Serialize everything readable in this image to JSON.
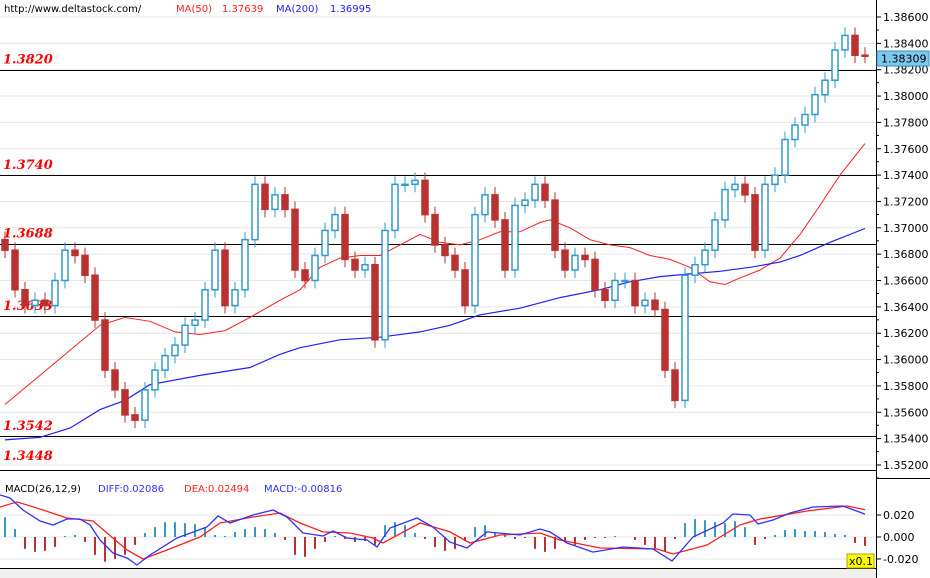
{
  "header": {
    "url": "http://www.deltastock.com/",
    "ma50_label": "MA(50)",
    "ma50_value": "1.37639",
    "ma200_label": "MA(200)",
    "ma200_value": "1.36995"
  },
  "macd_header": {
    "label": "MACD(26,12,9)",
    "diff": "DIFF:0.02086",
    "dea": "DEA:0.02494",
    "macd": "MACD:-0.00816"
  },
  "current_price": "1.38309",
  "macd_scale_badge": "x0.1",
  "colors": {
    "up": "#3399cc",
    "down": "#b83232",
    "ma50": "#ff2020",
    "ma200": "#2020ff",
    "diff": "#3030ff",
    "dea": "#ff2020",
    "level": "#ff0000",
    "price_box": "#7ec8f0"
  },
  "chart_data": [
    {
      "type": "candlestick",
      "ylim": [
        1.3516,
        1.3869
      ],
      "y_ticks": [
        "1.38600",
        "1.38400",
        "1.38200",
        "1.38000",
        "1.37800",
        "1.37600",
        "1.37400",
        "1.37200",
        "1.37000",
        "1.36800",
        "1.36600",
        "1.36400",
        "1.36200",
        "1.36000",
        "1.35800",
        "1.35600",
        "1.35400",
        "1.35200"
      ],
      "levels": [
        "1.3820",
        "1.3740",
        "1.3688",
        "1.3633",
        "1.3542",
        "1.3448"
      ],
      "close": [
        1.3683,
        1.3653,
        1.3641,
        1.3645,
        1.3641,
        1.366,
        1.3683,
        1.3679,
        1.3664,
        1.363,
        1.3592,
        1.3577,
        1.3558,
        1.3554,
        1.3577,
        1.3592,
        1.3603,
        1.3611,
        1.3626,
        1.363,
        1.3653,
        1.3683,
        1.3641,
        1.3653,
        1.3691,
        1.3733,
        1.3714,
        1.3725,
        1.3714,
        1.3668,
        1.366,
        1.3679,
        1.3698,
        1.371,
        1.3676,
        1.3668,
        1.3672,
        1.3615,
        1.3698,
        1.3733,
        1.3733,
        1.3736,
        1.371,
        1.3687,
        1.3679,
        1.3668,
        1.3641,
        1.371,
        1.3725,
        1.3706,
        1.3668,
        1.3717,
        1.3721,
        1.3733,
        1.3721,
        1.3683,
        1.3668,
        1.3679,
        1.3676,
        1.3653,
        1.3645,
        1.366,
        1.366,
        1.3641,
        1.3645,
        1.3638,
        1.3592,
        1.3569,
        1.3664,
        1.3672,
        1.3683,
        1.3706,
        1.3729,
        1.3733,
        1.3725,
        1.3683,
        1.3733,
        1.374,
        1.3767,
        1.3778,
        1.3786,
        1.3801,
        1.3812,
        1.3835,
        1.3846,
        1.3831,
        1.38309
      ],
      "ma50": [
        [
          0,
          1.3566
        ],
        [
          3.5,
          1.3588
        ],
        [
          6.5,
          1.3607
        ],
        [
          9.5,
          1.3626
        ],
        [
          12,
          1.3632
        ],
        [
          14.5,
          1.3629
        ],
        [
          17,
          1.3621
        ],
        [
          19.5,
          1.3619
        ],
        [
          22,
          1.3622
        ],
        [
          24.5,
          1.3632
        ],
        [
          27.5,
          1.3645
        ],
        [
          29.5,
          1.3653
        ],
        [
          31.5,
          1.367
        ],
        [
          33.5,
          1.3677
        ],
        [
          35.5,
          1.3679
        ],
        [
          37.5,
          1.3679
        ],
        [
          39.5,
          1.3687
        ],
        [
          41.5,
          1.3695
        ],
        [
          43.5,
          1.3689
        ],
        [
          45.5,
          1.3687
        ],
        [
          47.5,
          1.3691
        ],
        [
          49.5,
          1.3697
        ],
        [
          51.5,
          1.3697
        ],
        [
          53.5,
          1.3704
        ],
        [
          54.5,
          1.3706
        ],
        [
          56.5,
          1.37
        ],
        [
          58.5,
          1.3691
        ],
        [
          60.5,
          1.3687
        ],
        [
          62.5,
          1.3685
        ],
        [
          64.5,
          1.3679
        ],
        [
          66.5,
          1.3676
        ],
        [
          68.5,
          1.367
        ],
        [
          70.5,
          1.3659
        ],
        [
          72,
          1.3657
        ],
        [
          73.5,
          1.3662
        ],
        [
          75.5,
          1.3668
        ],
        [
          77.5,
          1.3677
        ],
        [
          79.5,
          1.3695
        ],
        [
          81.5,
          1.3717
        ],
        [
          83.5,
          1.374
        ],
        [
          86,
          1.37639
        ]
      ],
      "ma200": [
        [
          0,
          1.3539
        ],
        [
          3.5,
          1.3541
        ],
        [
          6.5,
          1.3548
        ],
        [
          9.5,
          1.3562
        ],
        [
          12,
          1.3569
        ],
        [
          14.5,
          1.3581
        ],
        [
          19.5,
          1.3588
        ],
        [
          24.5,
          1.3594
        ],
        [
          27.5,
          1.3604
        ],
        [
          29.5,
          1.3609
        ],
        [
          33.5,
          1.3615
        ],
        [
          37.5,
          1.3617
        ],
        [
          41.5,
          1.3621
        ],
        [
          44.5,
          1.3626
        ],
        [
          47.5,
          1.3634
        ],
        [
          51.5,
          1.3639
        ],
        [
          55.5,
          1.3647
        ],
        [
          59.5,
          1.3653
        ],
        [
          62.5,
          1.3659
        ],
        [
          65.5,
          1.3663
        ],
        [
          68.5,
          1.3665
        ],
        [
          71.5,
          1.3667
        ],
        [
          74.5,
          1.367
        ],
        [
          77.5,
          1.3674
        ],
        [
          79.5,
          1.3679
        ],
        [
          82.5,
          1.3689
        ],
        [
          86,
          1.36995
        ]
      ]
    },
    {
      "type": "macd",
      "ylim": [
        -0.028,
        0.05
      ],
      "y_ticks": [
        "0.020",
        "0.000",
        "-0.020"
      ],
      "histogram": [
        0.018,
        0.0072,
        -0.0108,
        -0.0135,
        -0.0126,
        -0.009,
        0.0009,
        0.0018,
        -0.0045,
        -0.0162,
        -0.0225,
        -0.0198,
        -0.0162,
        -0.0072,
        0.0036,
        0.009,
        0.0135,
        0.0135,
        0.0126,
        0.0117,
        0.009,
        0.0018,
        0.0009,
        0.0045,
        0.0072,
        0.009,
        0.0072,
        0.0036,
        -0.0027,
        -0.0162,
        -0.018,
        -0.0108,
        -0.0045,
        0.0009,
        -0.0018,
        -0.0045,
        -0.0036,
        -0.0072,
        0.0108,
        0.0135,
        0.0108,
        0.0036,
        -0.0018,
        -0.009,
        -0.0126,
        -0.0108,
        -0.0036,
        0.009,
        0.0108,
        0.0045,
        0.0018,
        -0.0018,
        -0.0009,
        -0.0108,
        -0.0135,
        -0.0108,
        -0.0045,
        -0.0072,
        -0.0027,
        -0.0009,
        -0.0009,
        0.0009,
        0,
        -0.0027,
        -0.0072,
        -0.0108,
        -0.0135,
        -0.0018,
        0.0126,
        0.0162,
        0.0153,
        0.0135,
        0.0126,
        0.0144,
        0.009,
        -0.0072,
        -0.0018,
        0.0018,
        0.0063,
        0.0072,
        0.0054,
        0.0054,
        0.0045,
        0.0027,
        0.0018,
        -0.0054,
        -0.0081
      ],
      "diff": [
        [
          -0.5,
          0.0382
        ],
        [
          0.5,
          0.0355
        ],
        [
          1.8,
          0.0246
        ],
        [
          3.5,
          0.0146
        ],
        [
          4.8,
          0.0109
        ],
        [
          6.2,
          0.0164
        ],
        [
          7.5,
          0.0164
        ],
        [
          8.5,
          0.0109
        ],
        [
          9.5,
          -0.0027
        ],
        [
          10.8,
          -0.0146
        ],
        [
          12.2,
          -0.0191
        ],
        [
          13.2,
          -0.0255
        ],
        [
          14.5,
          -0.0164
        ],
        [
          17.2,
          -0.0009
        ],
        [
          20.2,
          0.0091
        ],
        [
          21.3,
          0.0191
        ],
        [
          22.5,
          0.0127
        ],
        [
          24.8,
          0.02
        ],
        [
          26.8,
          0.0246
        ],
        [
          28.2,
          0.0182
        ],
        [
          29.8,
          0.0036
        ],
        [
          31.8,
          0.0009
        ],
        [
          32.8,
          0.0055
        ],
        [
          34.2,
          -0.0009
        ],
        [
          36.2,
          -0.0027
        ],
        [
          37.2,
          -0.0091
        ],
        [
          38.5,
          0.0082
        ],
        [
          41.2,
          0.0173
        ],
        [
          42.8,
          0.0091
        ],
        [
          44.5,
          -0.0046
        ],
        [
          46.2,
          -0.01
        ],
        [
          48.2,
          0.0046
        ],
        [
          51.5,
          0.0018
        ],
        [
          53.5,
          0.0073
        ],
        [
          54.5,
          0.0046
        ],
        [
          56.2,
          -0.0055
        ],
        [
          58.8,
          -0.0137
        ],
        [
          61.8,
          -0.0091
        ],
        [
          64.8,
          -0.0109
        ],
        [
          66.7,
          -0.0218
        ],
        [
          68.8,
          0
        ],
        [
          71.8,
          0.0127
        ],
        [
          72.8,
          0.0209
        ],
        [
          74.5,
          0.02
        ],
        [
          75.3,
          0.0118
        ],
        [
          76.8,
          0.0155
        ],
        [
          78.5,
          0.0218
        ],
        [
          80.8,
          0.0273
        ],
        [
          83.8,
          0.0282
        ],
        [
          86,
          0.02086
        ]
      ],
      "dea": [
        [
          -0.5,
          0.0273
        ],
        [
          1.2,
          0.0319
        ],
        [
          3.8,
          0.0246
        ],
        [
          6.2,
          0.0173
        ],
        [
          8.8,
          0.0146
        ],
        [
          10.2,
          0.0036
        ],
        [
          12.2,
          -0.0118
        ],
        [
          13.8,
          -0.02
        ],
        [
          16.2,
          -0.0118
        ],
        [
          19.5,
          0
        ],
        [
          21.5,
          0.0127
        ],
        [
          24.8,
          0.0182
        ],
        [
          27.5,
          0.0218
        ],
        [
          29.5,
          0.0127
        ],
        [
          31.8,
          0.0046
        ],
        [
          34.5,
          0.0036
        ],
        [
          36.8,
          -0.0009
        ],
        [
          37.8,
          -0.0055
        ],
        [
          41.5,
          0.0127
        ],
        [
          44.5,
          0.0046
        ],
        [
          46.5,
          -0.0055
        ],
        [
          49.5,
          0.0018
        ],
        [
          53.5,
          0.0036
        ],
        [
          55.5,
          -0.0027
        ],
        [
          59.5,
          -0.01
        ],
        [
          65.2,
          -0.0109
        ],
        [
          66.8,
          -0.0155
        ],
        [
          70.2,
          -0.0073
        ],
        [
          73.5,
          0.0109
        ],
        [
          75.5,
          0.0164
        ],
        [
          80.2,
          0.0237
        ],
        [
          84.2,
          0.0282
        ],
        [
          86,
          0.02494
        ]
      ]
    }
  ]
}
